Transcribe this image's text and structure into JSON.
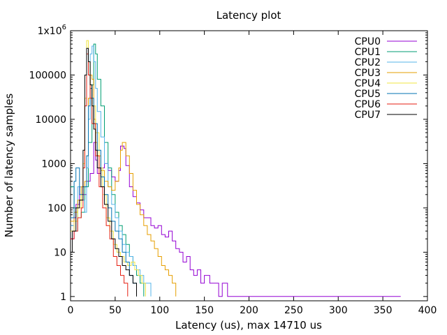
{
  "chart_data": {
    "type": "line",
    "title": "Latency plot",
    "xlabel": "Latency (us), max 14710 us",
    "ylabel": "Number of latency samples",
    "xlim": [
      0,
      400
    ],
    "ylim": [
      0.8,
      1000000
    ],
    "yscale": "log",
    "grid": false,
    "legend_position": "top-right",
    "x_ticks": [
      0,
      50,
      100,
      150,
      200,
      250,
      300,
      350,
      400
    ],
    "x_tick_labels": [
      "0",
      "50",
      "100",
      "150",
      "200",
      "250",
      "300",
      "350",
      "400"
    ],
    "y_ticks": [
      1,
      10,
      100,
      1000,
      10000,
      100000,
      1000000
    ],
    "y_tick_labels": [
      "1",
      "10",
      "100",
      "1000",
      "10000",
      "100000",
      "1x10^6"
    ],
    "series": [
      {
        "name": "CPU0",
        "color": "#9400d3",
        "points": [
          [
            0,
            20
          ],
          [
            4,
            60
          ],
          [
            6,
            120
          ],
          [
            10,
            300
          ],
          [
            14,
            200
          ],
          [
            18,
            400
          ],
          [
            22,
            600
          ],
          [
            26,
            3000
          ],
          [
            28,
            1200
          ],
          [
            30,
            600
          ],
          [
            34,
            800
          ],
          [
            38,
            1000
          ],
          [
            42,
            700
          ],
          [
            46,
            500
          ],
          [
            50,
            400
          ],
          [
            54,
            700
          ],
          [
            56,
            2500
          ],
          [
            60,
            2200
          ],
          [
            62,
            900
          ],
          [
            66,
            300
          ],
          [
            70,
            180
          ],
          [
            74,
            130
          ],
          [
            78,
            90
          ],
          [
            82,
            60
          ],
          [
            86,
            60
          ],
          [
            90,
            40
          ],
          [
            94,
            35
          ],
          [
            98,
            40
          ],
          [
            102,
            25
          ],
          [
            106,
            22
          ],
          [
            110,
            30
          ],
          [
            114,
            18
          ],
          [
            118,
            12
          ],
          [
            122,
            10
          ],
          [
            126,
            6
          ],
          [
            130,
            8
          ],
          [
            134,
            4
          ],
          [
            138,
            3
          ],
          [
            142,
            4
          ],
          [
            146,
            2
          ],
          [
            150,
            3
          ],
          [
            156,
            2
          ],
          [
            160,
            2
          ],
          [
            166,
            1
          ],
          [
            170,
            2
          ],
          [
            176,
            1
          ],
          [
            182,
            1
          ],
          [
            190,
            1
          ],
          [
            200,
            1
          ],
          [
            220,
            1
          ],
          [
            240,
            1
          ],
          [
            260,
            1
          ],
          [
            282,
            1
          ],
          [
            340,
            1
          ],
          [
            370,
            1
          ]
        ]
      },
      {
        "name": "CPU1",
        "color": "#009e73",
        "points": [
          [
            0,
            300
          ],
          [
            4,
            100
          ],
          [
            8,
            60
          ],
          [
            12,
            80
          ],
          [
            16,
            300
          ],
          [
            20,
            3000
          ],
          [
            24,
            60000
          ],
          [
            26,
            500000
          ],
          [
            28,
            300000
          ],
          [
            30,
            80000
          ],
          [
            34,
            20000
          ],
          [
            38,
            3000
          ],
          [
            42,
            800
          ],
          [
            46,
            200
          ],
          [
            50,
            80
          ],
          [
            54,
            40
          ],
          [
            58,
            25
          ],
          [
            62,
            15
          ],
          [
            66,
            8
          ],
          [
            70,
            5
          ],
          [
            74,
            3
          ],
          [
            78,
            2
          ],
          [
            82,
            1
          ]
        ]
      },
      {
        "name": "CPU2",
        "color": "#56b4e9",
        "points": [
          [
            0,
            40
          ],
          [
            4,
            30
          ],
          [
            8,
            300
          ],
          [
            12,
            150
          ],
          [
            16,
            80
          ],
          [
            18,
            800
          ],
          [
            20,
            10000
          ],
          [
            22,
            300000
          ],
          [
            24,
            450000
          ],
          [
            26,
            200000
          ],
          [
            28,
            50000
          ],
          [
            30,
            15000
          ],
          [
            34,
            4000
          ],
          [
            38,
            1000
          ],
          [
            42,
            300
          ],
          [
            46,
            120
          ],
          [
            50,
            60
          ],
          [
            54,
            30
          ],
          [
            58,
            15
          ],
          [
            62,
            10
          ],
          [
            66,
            8
          ],
          [
            70,
            5
          ],
          [
            74,
            4
          ],
          [
            78,
            3
          ],
          [
            82,
            2
          ],
          [
            90,
            1
          ]
        ]
      },
      {
        "name": "CPU3",
        "color": "#e69f00",
        "points": [
          [
            0,
            50
          ],
          [
            4,
            80
          ],
          [
            8,
            150
          ],
          [
            12,
            300
          ],
          [
            16,
            400
          ],
          [
            18,
            1500
          ],
          [
            20,
            30000
          ],
          [
            22,
            100000
          ],
          [
            24,
            80000
          ],
          [
            26,
            10000
          ],
          [
            28,
            3000
          ],
          [
            30,
            1500
          ],
          [
            34,
            700
          ],
          [
            38,
            400
          ],
          [
            42,
            300
          ],
          [
            46,
            250
          ],
          [
            50,
            400
          ],
          [
            54,
            800
          ],
          [
            56,
            2000
          ],
          [
            58,
            3000
          ],
          [
            62,
            1500
          ],
          [
            66,
            600
          ],
          [
            70,
            250
          ],
          [
            74,
            120
          ],
          [
            78,
            70
          ],
          [
            82,
            40
          ],
          [
            86,
            25
          ],
          [
            90,
            18
          ],
          [
            94,
            12
          ],
          [
            98,
            8
          ],
          [
            102,
            5
          ],
          [
            106,
            4
          ],
          [
            110,
            3
          ],
          [
            114,
            2
          ],
          [
            118,
            1
          ]
        ]
      },
      {
        "name": "CPU4",
        "color": "#f0e442",
        "points": [
          [
            0,
            30
          ],
          [
            4,
            50
          ],
          [
            8,
            100
          ],
          [
            12,
            200
          ],
          [
            14,
            1000
          ],
          [
            16,
            30000
          ],
          [
            18,
            600000
          ],
          [
            20,
            200000
          ],
          [
            22,
            50000
          ],
          [
            24,
            20000
          ],
          [
            28,
            5000
          ],
          [
            32,
            800
          ],
          [
            36,
            200
          ],
          [
            40,
            60
          ],
          [
            44,
            30
          ],
          [
            48,
            15
          ],
          [
            52,
            10
          ],
          [
            56,
            8
          ],
          [
            60,
            6
          ],
          [
            64,
            5
          ],
          [
            68,
            6
          ],
          [
            72,
            4
          ],
          [
            76,
            3
          ],
          [
            80,
            2
          ],
          [
            84,
            1
          ]
        ]
      },
      {
        "name": "CPU5",
        "color": "#0072b2",
        "points": [
          [
            0,
            60
          ],
          [
            4,
            400
          ],
          [
            6,
            800
          ],
          [
            10,
            200
          ],
          [
            14,
            300
          ],
          [
            18,
            1500
          ],
          [
            20,
            20000
          ],
          [
            22,
            50000
          ],
          [
            24,
            30000
          ],
          [
            26,
            8000
          ],
          [
            30,
            2000
          ],
          [
            34,
            500
          ],
          [
            38,
            200
          ],
          [
            42,
            100
          ],
          [
            46,
            50
          ],
          [
            50,
            30
          ],
          [
            54,
            20
          ],
          [
            58,
            10
          ],
          [
            62,
            6
          ],
          [
            66,
            3
          ],
          [
            70,
            2
          ],
          [
            74,
            1
          ]
        ]
      },
      {
        "name": "CPU6",
        "color": "#e51e10",
        "points": [
          [
            0,
            20
          ],
          [
            4,
            30
          ],
          [
            8,
            60
          ],
          [
            12,
            100
          ],
          [
            14,
            800
          ],
          [
            16,
            20000
          ],
          [
            18,
            300000
          ],
          [
            20,
            100000
          ],
          [
            22,
            30000
          ],
          [
            24,
            8000
          ],
          [
            28,
            1500
          ],
          [
            32,
            300
          ],
          [
            36,
            100
          ],
          [
            40,
            40
          ],
          [
            44,
            20
          ],
          [
            48,
            8
          ],
          [
            52,
            5
          ],
          [
            56,
            3
          ],
          [
            60,
            2
          ],
          [
            64,
            1
          ]
        ]
      },
      {
        "name": "CPU7",
        "color": "#000000",
        "points": [
          [
            0,
            10
          ],
          [
            2,
            30
          ],
          [
            6,
            100
          ],
          [
            10,
            150
          ],
          [
            14,
            2000
          ],
          [
            16,
            100000
          ],
          [
            18,
            400000
          ],
          [
            20,
            200000
          ],
          [
            22,
            60000
          ],
          [
            24,
            20000
          ],
          [
            26,
            6000
          ],
          [
            28,
            2000
          ],
          [
            30,
            800
          ],
          [
            34,
            300
          ],
          [
            38,
            120
          ],
          [
            42,
            50
          ],
          [
            46,
            20
          ],
          [
            50,
            12
          ],
          [
            54,
            8
          ],
          [
            58,
            5
          ],
          [
            62,
            4
          ],
          [
            66,
            3
          ],
          [
            70,
            2
          ],
          [
            74,
            1
          ]
        ]
      }
    ]
  }
}
